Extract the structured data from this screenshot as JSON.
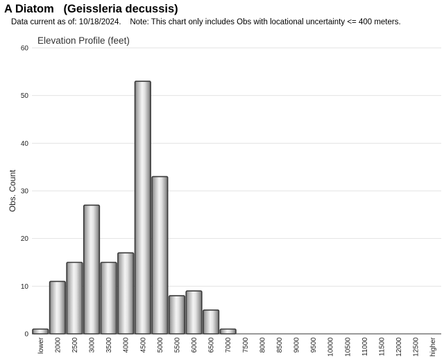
{
  "header": {
    "title": "A Diatom   (Geissleria decussis)",
    "subtitle": "Data current as of: 10/18/2024.    Note: This chart only includes Obs with locational uncertainty <= 400 meters."
  },
  "chart_data": {
    "type": "bar",
    "title": "Elevation Profile (feet)",
    "xlabel": "",
    "ylabel": "Obs. Count",
    "ylim": [
      0,
      60
    ],
    "yticks": [
      "0",
      "10",
      "20",
      "30",
      "40",
      "50",
      "60"
    ],
    "grid": true,
    "categories": [
      "lower",
      "2000",
      "2500",
      "3000",
      "3500",
      "4000",
      "4500",
      "5000",
      "5500",
      "6000",
      "6500",
      "7000",
      "7500",
      "8000",
      "8500",
      "9000",
      "9500",
      "10000",
      "10500",
      "11000",
      "11500",
      "12000",
      "12500",
      "higher"
    ],
    "values": [
      1,
      11,
      15,
      27,
      15,
      17,
      53,
      33,
      8,
      9,
      5,
      1,
      0,
      0,
      0,
      0,
      0,
      0,
      0,
      0,
      0,
      0,
      0,
      0
    ]
  }
}
